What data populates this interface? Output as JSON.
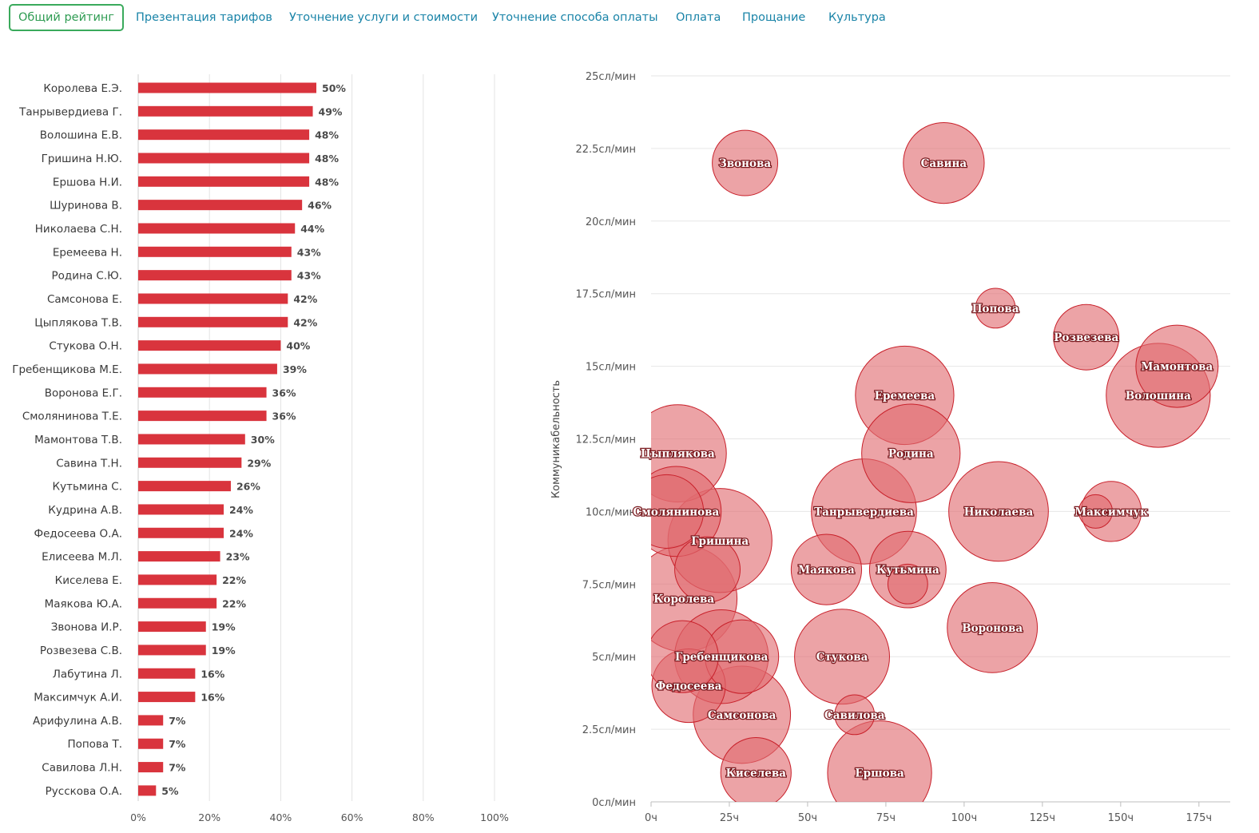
{
  "tabs": [
    {
      "label": "Общий рейтинг",
      "active": true
    },
    {
      "label": "Презентация тарифов",
      "active": false
    },
    {
      "label": "Уточнение услуги и стоимости",
      "active": false
    },
    {
      "label": "Уточнение способа оплаты",
      "active": false
    },
    {
      "label": "Оплата",
      "active": false
    },
    {
      "label": "Прощание",
      "active": false
    },
    {
      "label": "Культура",
      "active": false
    }
  ],
  "colors": {
    "accent_green": "#3aaa5c",
    "tab_link": "#1a84a8",
    "bar": "#d9343d",
    "bubble_fill": "#e06a70",
    "bubble_stroke": "#c8202a"
  },
  "chart_data": [
    {
      "type": "bar",
      "orientation": "horizontal",
      "categories": [
        "Королева Е.Э.",
        "Танрывердиева Г.",
        "Волошина Е.В.",
        "Гришина Н.Ю.",
        "Ершова Н.И.",
        "Шуринова В.",
        "Николаева С.Н.",
        "Еремеева Н.",
        "Родина С.Ю.",
        "Самсонова Е.",
        "Цыплякова Т.В.",
        "Стукова О.Н.",
        "Гребенщикова М.Е.",
        "Воронова Е.Г.",
        "Смолянинова Т.Е.",
        "Мамонтова Т.В.",
        "Савина Т.Н.",
        "Кутьмина С.",
        "Кудрина А.В.",
        "Федосеева О.А.",
        "Елисеева М.Л.",
        "Киселева Е.",
        "Маякова Ю.А.",
        "Звонова И.Р.",
        "Розвезева С.В.",
        "Лабутина Л.",
        "Максимчук А.И.",
        "Арифулина А.В.",
        "Попова Т.",
        "Савилова Л.Н.",
        "Русскова О.А."
      ],
      "values": [
        50,
        49,
        48,
        48,
        48,
        46,
        44,
        43,
        43,
        42,
        42,
        40,
        39,
        36,
        36,
        30,
        29,
        26,
        24,
        24,
        23,
        22,
        22,
        19,
        19,
        16,
        16,
        7,
        7,
        7,
        5
      ],
      "value_labels": [
        "50%",
        "49%",
        "48%",
        "48%",
        "48%",
        "46%",
        "44%",
        "43%",
        "43%",
        "42%",
        "42%",
        "40%",
        "39%",
        "36%",
        "36%",
        "30%",
        "29%",
        "26%",
        "24%",
        "24%",
        "23%",
        "22%",
        "22%",
        "19%",
        "19%",
        "16%",
        "16%",
        "7%",
        "7%",
        "7%",
        "5%"
      ],
      "xlim": [
        0,
        100
      ],
      "xticks": [
        "0%",
        "20%",
        "40%",
        "60%",
        "80%",
        "100%"
      ],
      "grid": true
    },
    {
      "type": "scatter",
      "subtype": "bubble",
      "ylabel": "Коммуникабельность",
      "xlim": [
        0,
        185
      ],
      "ylim": [
        0,
        25
      ],
      "xticks": [
        "0ч",
        "25ч",
        "50ч",
        "75ч",
        "100ч",
        "125ч",
        "150ч",
        "175ч"
      ],
      "xtick_values": [
        0,
        25,
        50,
        75,
        100,
        125,
        150,
        175
      ],
      "yticks": [
        "0сл/мин",
        "2.5сл/мин",
        "5сл/мин",
        "7.5сл/мин",
        "10сл/мин",
        "12.5сл/мин",
        "15сл/мин",
        "17.5сл/мин",
        "20сл/мин",
        "22.5сл/мин",
        "25сл/мин"
      ],
      "ytick_values": [
        0,
        2.5,
        5,
        7.5,
        10,
        12.5,
        15,
        17.5,
        20,
        22.5,
        25
      ],
      "grid": true,
      "points": [
        {
          "name": "Звонова",
          "x": 30,
          "y": 22,
          "size": 19
        },
        {
          "name": "Савина",
          "x": 93.5,
          "y": 22,
          "size": 29
        },
        {
          "name": "Попова",
          "x": 110,
          "y": 17,
          "size": 7
        },
        {
          "name": "Розвезева",
          "x": 139,
          "y": 16,
          "size": 19
        },
        {
          "name": "Мамонтова",
          "x": 168,
          "y": 15,
          "size": 30
        },
        {
          "name": "Волошина",
          "x": 162,
          "y": 14,
          "size": 48
        },
        {
          "name": "Еремеева",
          "x": 81,
          "y": 14,
          "size": 43
        },
        {
          "name": "Родина",
          "x": 83,
          "y": 12,
          "size": 43
        },
        {
          "name": "Цыплякова",
          "x": 8.5,
          "y": 12,
          "size": 42
        },
        {
          "name": "Смолянинова",
          "x": 8,
          "y": 10,
          "size": 36
        },
        {
          "name": "Гришина",
          "x": 22,
          "y": 9,
          "size": 48
        },
        {
          "name": "Танрывердиева",
          "x": 68,
          "y": 10,
          "size": 49
        },
        {
          "name": "Николаева",
          "x": 111,
          "y": 10,
          "size": 44
        },
        {
          "name": "Максимчук",
          "x": 147,
          "y": 10,
          "size": 16
        },
        {
          "name": "Маякова",
          "x": 56,
          "y": 8,
          "size": 22
        },
        {
          "name": "Кутьмина",
          "x": 82,
          "y": 8,
          "size": 26
        },
        {
          "name": "Королева",
          "x": 10.5,
          "y": 7,
          "size": 50
        },
        {
          "name": "Воронова",
          "x": 109,
          "y": 6,
          "size": 36
        },
        {
          "name": "Гребенщикова",
          "x": 22.5,
          "y": 5,
          "size": 39
        },
        {
          "name": "Стукова",
          "x": 61,
          "y": 5,
          "size": 40
        },
        {
          "name": "Федосеева",
          "x": 12,
          "y": 4,
          "size": 24
        },
        {
          "name": "Самсонова",
          "x": 29,
          "y": 3,
          "size": 42
        },
        {
          "name": "Савилова",
          "x": 65,
          "y": 3,
          "size": 7
        },
        {
          "name": "Киселева",
          "x": 33.5,
          "y": 1,
          "size": 22
        },
        {
          "name": "Ершова",
          "x": 73,
          "y": 1,
          "size": 48
        }
      ],
      "unlabeled_points": [
        {
          "x": 5,
          "y": 10,
          "size": 24
        },
        {
          "x": 10,
          "y": 5,
          "size": 23
        },
        {
          "x": 18,
          "y": 8,
          "size": 19
        },
        {
          "x": 29,
          "y": 5,
          "size": 24
        },
        {
          "x": 82,
          "y": 7.5,
          "size": 7
        },
        {
          "x": 142,
          "y": 10,
          "size": 5
        }
      ]
    }
  ]
}
